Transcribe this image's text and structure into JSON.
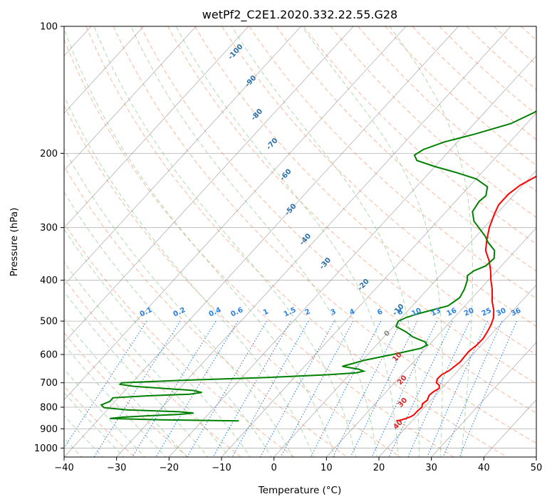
{
  "chart_data": {
    "type": "line",
    "title": "wetPf2_C2E1.2020.332.22.55.G28",
    "xlabel": "Temperature (°C)",
    "ylabel": "Pressure (hPa)",
    "xlim": [
      -40,
      50
    ],
    "ylim": [
      1050,
      100
    ],
    "y_scale": "log",
    "x_ticks": [
      -40,
      -30,
      -20,
      -10,
      0,
      10,
      20,
      30,
      40,
      50
    ],
    "y_ticks": [
      100,
      200,
      300,
      400,
      500,
      600,
      700,
      800,
      900,
      1000
    ],
    "grid": true,
    "series": [
      {
        "role": "temperature",
        "color": "#ff0000",
        "points": [
          [
            862,
            17.0
          ],
          [
            858,
            17.8
          ],
          [
            850,
            18.5
          ],
          [
            843,
            19.0
          ],
          [
            835,
            19.3
          ],
          [
            818,
            19.3
          ],
          [
            800,
            19.5
          ],
          [
            785,
            19.0
          ],
          [
            770,
            19.3
          ],
          [
            750,
            18.8
          ],
          [
            735,
            19.0
          ],
          [
            722,
            19.5
          ],
          [
            710,
            19.0
          ],
          [
            700,
            18.0
          ],
          [
            685,
            17.5
          ],
          [
            670,
            17.6
          ],
          [
            655,
            18.3
          ],
          [
            640,
            18.6
          ],
          [
            625,
            18.9
          ],
          [
            610,
            18.8
          ],
          [
            590,
            18.7
          ],
          [
            570,
            19.1
          ],
          [
            550,
            19.2
          ],
          [
            530,
            18.8
          ],
          [
            510,
            18.3
          ],
          [
            490,
            17.5
          ],
          [
            470,
            16.2
          ],
          [
            450,
            14.5
          ],
          [
            420,
            12.3
          ],
          [
            400,
            10.5
          ],
          [
            380,
            8.8
          ],
          [
            360,
            6.8
          ],
          [
            340,
            4.3
          ],
          [
            320,
            2.6
          ],
          [
            300,
            1.0
          ],
          [
            280,
            -0.3
          ],
          [
            265,
            -1.2
          ],
          [
            250,
            -1.2
          ],
          [
            238,
            -0.5
          ],
          [
            225,
            1.3
          ],
          [
            215,
            2.8
          ],
          [
            205,
            3.6
          ],
          [
            195,
            3.8
          ],
          [
            185,
            3.5
          ],
          [
            175,
            2.8
          ],
          [
            165,
            2.0
          ],
          [
            155,
            1.6
          ],
          [
            145,
            1.5
          ],
          [
            135,
            1.3
          ],
          [
            125,
            1.2
          ],
          [
            118,
            1.5
          ],
          [
            112,
            2.8
          ],
          [
            106,
            4.6
          ],
          [
            100,
            6.5
          ]
        ]
      },
      {
        "role": "dewpoint",
        "color": "#008000",
        "points": [
          [
            862,
            -13.0
          ],
          [
            857,
            -28.0
          ],
          [
            851,
            -38.0
          ],
          [
            845,
            -36.0
          ],
          [
            838,
            -31.0
          ],
          [
            832,
            -25.5
          ],
          [
            826,
            -23.0
          ],
          [
            820,
            -26.0
          ],
          [
            812,
            -36.0
          ],
          [
            802,
            -41.0
          ],
          [
            790,
            -42.0
          ],
          [
            775,
            -41.0
          ],
          [
            760,
            -41.0
          ],
          [
            752,
            -35.0
          ],
          [
            745,
            -27.0
          ],
          [
            738,
            -25.0
          ],
          [
            730,
            -27.0
          ],
          [
            722,
            -33.0
          ],
          [
            714,
            -39.0
          ],
          [
            706,
            -42.0
          ],
          [
            700,
            -42.0
          ],
          [
            690,
            -30.0
          ],
          [
            680,
            -15.0
          ],
          [
            670,
            -4.0
          ],
          [
            663,
            1.0
          ],
          [
            657,
            2.1
          ],
          [
            650,
            0.8
          ],
          [
            640,
            -2.8
          ],
          [
            630,
            -1.3
          ],
          [
            620,
            0.2
          ],
          [
            607,
            3.1
          ],
          [
            595,
            5.8
          ],
          [
            580,
            9.0
          ],
          [
            570,
            9.7
          ],
          [
            560,
            8.7
          ],
          [
            545,
            5.5
          ],
          [
            530,
            3.3
          ],
          [
            515,
            0.5
          ],
          [
            500,
            0.0
          ],
          [
            490,
            0.9
          ],
          [
            480,
            2.5
          ],
          [
            460,
            6.8
          ],
          [
            440,
            7.6
          ],
          [
            420,
            7.0
          ],
          [
            400,
            6.0
          ],
          [
            390,
            5.2
          ],
          [
            380,
            5.6
          ],
          [
            370,
            7.0
          ],
          [
            355,
            7.3
          ],
          [
            340,
            6.0
          ],
          [
            325,
            3.3
          ],
          [
            315,
            1.8
          ],
          [
            300,
            -1.0
          ],
          [
            290,
            -3.0
          ],
          [
            275,
            -5.0
          ],
          [
            260,
            -5.5
          ],
          [
            252,
            -5.2
          ],
          [
            240,
            -6.5
          ],
          [
            230,
            -10.0
          ],
          [
            222,
            -15.0
          ],
          [
            215,
            -20.0
          ],
          [
            208,
            -24.5
          ],
          [
            202,
            -25.9
          ],
          [
            196,
            -25.2
          ],
          [
            188,
            -22.5
          ],
          [
            180,
            -18.0
          ],
          [
            170,
            -13.0
          ],
          [
            160,
            -10.5
          ],
          [
            150,
            -9.0
          ],
          [
            140,
            -6.5
          ],
          [
            130,
            -3.2
          ],
          [
            120,
            -0.5
          ],
          [
            110,
            1.5
          ],
          [
            100,
            3.8
          ]
        ]
      }
    ],
    "dry_adiabat_labels": [
      "0",
      "10",
      "20",
      "30",
      "40"
    ],
    "moist_adiabat_labels": [
      "-100",
      "-90",
      "-80",
      "-70",
      "-60",
      "-50",
      "-40",
      "-30",
      "-20",
      "-10"
    ],
    "mixing_ratio_labels": [
      "0.1",
      "0.2",
      "0.4",
      "0.6",
      "1",
      "1.5",
      "2",
      "3",
      "4",
      "6",
      "8",
      "10",
      "13",
      "16",
      "20",
      "25",
      "30",
      "36"
    ],
    "colors": {
      "temperature": "#ff0000",
      "dewpoint": "#008000",
      "dry_adiabat": "#f8a07a",
      "moist_adiabat": "#8fc98f",
      "mixing_ratio": "#2a82e0",
      "isotherm": "#808080",
      "label_moist": "#2a6fa8",
      "label_dry": "#d62828",
      "label_mixing": "#2a82e0"
    }
  }
}
